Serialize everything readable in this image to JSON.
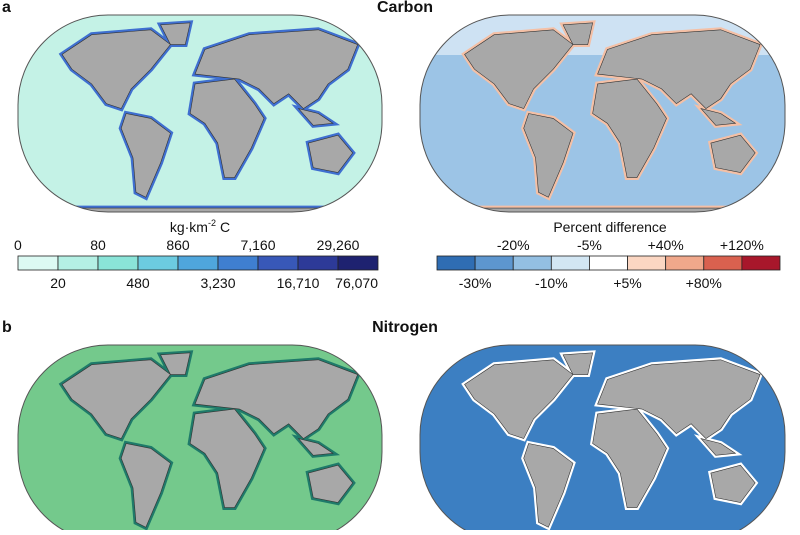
{
  "panels": [
    {
      "label": "a",
      "title": "Carbon"
    },
    {
      "label": "b",
      "title": "Nitrogen"
    }
  ],
  "carbon_legend": {
    "unit": {
      "text": "kg·km",
      "superscript": "-2",
      "suffix": "C"
    },
    "labels": [
      "0",
      "20",
      "80",
      "480",
      "860",
      "3,230",
      "7,160",
      "16,710",
      "29,260",
      "76,070"
    ],
    "colors": [
      "#dcfaf3",
      "#b4f0e4",
      "#8ae4d8",
      "#6ccbe0",
      "#4fa6dc",
      "#3f7fd0",
      "#3858b8",
      "#2d3a98",
      "#1e2270"
    ]
  },
  "percent_legend": {
    "title": "Percent difference",
    "labels": [
      "-30%",
      "-20%",
      "-10%",
      "-5%",
      "+5%",
      "+40%",
      "+80%",
      "+120%"
    ],
    "colors": [
      "#2f6db3",
      "#5d96cf",
      "#93bfe2",
      "#d2e6f3",
      "#ffffff",
      "#fbd6c2",
      "#f0a88b",
      "#d9614f",
      "#a8172b"
    ]
  }
}
